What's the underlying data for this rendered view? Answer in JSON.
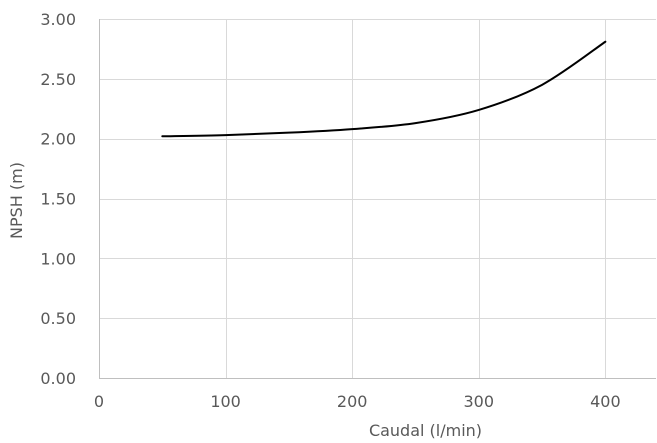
{
  "chart_data": {
    "type": "line",
    "title": "",
    "xlabel": "Caudal (l/min)",
    "ylabel": "NPSH (m)",
    "xlim": [
      0,
      440
    ],
    "ylim": [
      0,
      3
    ],
    "x_ticks": [
      0,
      100,
      200,
      300,
      400
    ],
    "x_tick_labels": [
      "0",
      "100",
      "200",
      "300",
      "400"
    ],
    "y_ticks": [
      0,
      0.5,
      1,
      1.5,
      2,
      2.5,
      3
    ],
    "y_tick_labels": [
      "0.00",
      "0.50",
      "1.00",
      "1.50",
      "2.00",
      "2.50",
      "3.00"
    ],
    "grid": true,
    "legend": false,
    "series": [
      {
        "color": "#000000",
        "x": [
          50,
          100,
          150,
          200,
          250,
          300,
          350,
          400
        ],
        "y": [
          2.02,
          2.03,
          2.05,
          2.08,
          2.13,
          2.24,
          2.45,
          2.81
        ]
      }
    ]
  }
}
